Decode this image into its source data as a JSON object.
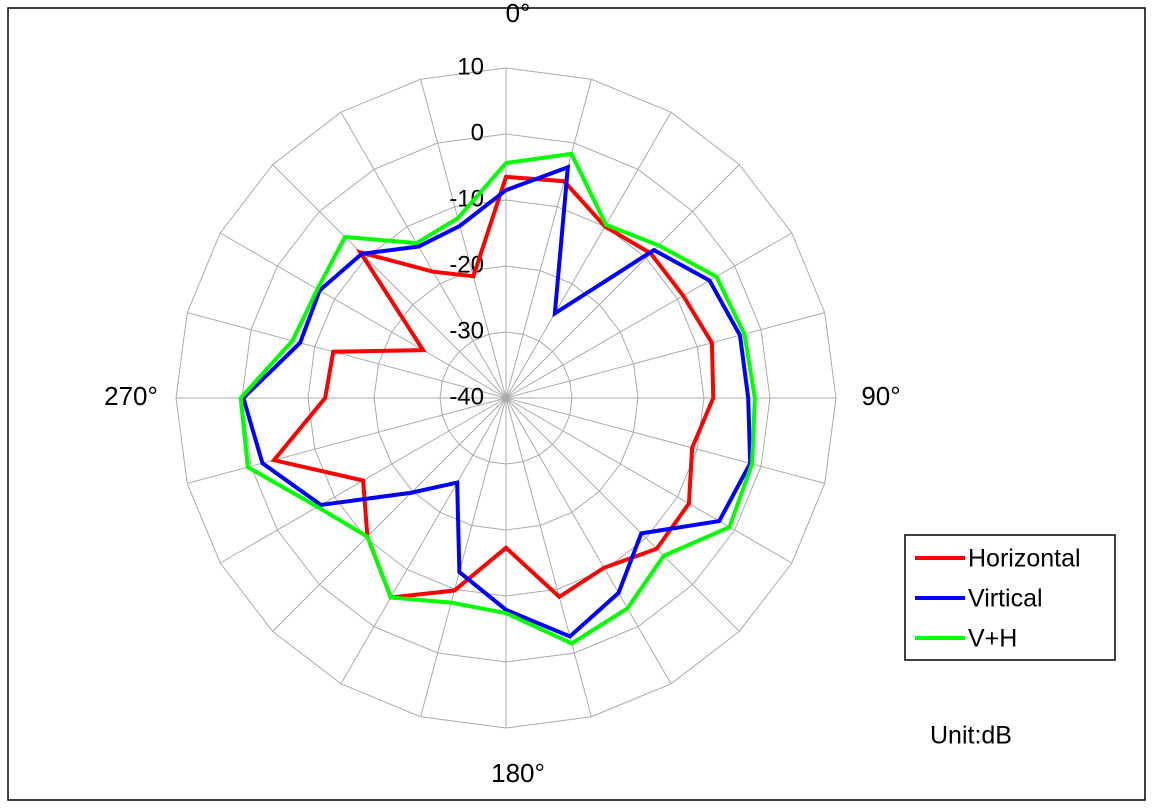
{
  "chart_data": {
    "type": "polar",
    "theta": [
      0,
      15,
      30,
      45,
      60,
      75,
      90,
      105,
      120,
      135,
      150,
      165,
      180,
      195,
      210,
      225,
      240,
      255,
      270,
      285,
      300,
      315,
      330,
      345
    ],
    "angle_labels": [
      {
        "value": 0,
        "label": "0°"
      },
      {
        "value": 90,
        "label": "90°"
      },
      {
        "value": 180,
        "label": "180°"
      },
      {
        "value": 270,
        "label": "270°"
      }
    ],
    "rlim": [
      -40,
      10
    ],
    "rticks": [
      -40,
      -30,
      -20,
      -10,
      0,
      10
    ],
    "series": [
      {
        "name": "Horizontal",
        "color": "#ff0000",
        "values": [
          -6.5,
          -6,
          -10,
          -9,
          -9,
          -7.7,
          -8.6,
          -10.8,
          -8,
          -7.7,
          -10.3,
          -8.8,
          -17.3,
          -9.8,
          -5.1,
          -10.3,
          -15,
          -3.6,
          -12.6,
          -12.9,
          -25.5,
          -8.8,
          -17.9,
          -20.9
        ]
      },
      {
        "name": "Virtical",
        "color": "#0000ff",
        "values": [
          -8.5,
          -3.8,
          -25.2,
          -8.3,
          -4.4,
          -3.3,
          -3.3,
          -1.7,
          -2.7,
          -11,
          -5.9,
          -2.6,
          -7.9,
          -12.7,
          -25.2,
          -19.7,
          -7.6,
          -1.8,
          -0.2,
          -7.7,
          -7.4,
          -9.1,
          -13.5,
          -13
        ]
      },
      {
        "name": "V+H",
        "color": "#00ff00",
        "values": [
          -4.4,
          -1.7,
          -9.7,
          -7.3,
          -3.2,
          -2.6,
          -2.3,
          -1.4,
          -0.9,
          -6.2,
          -3.2,
          -1.5,
          -7.4,
          -7.9,
          -5.1,
          -10.3,
          -7,
          0.5,
          0.2,
          -6.5,
          -7,
          -5.5,
          -12.9,
          -11.8
        ]
      }
    ],
    "annotation": "Unit:dB",
    "grid": true
  }
}
